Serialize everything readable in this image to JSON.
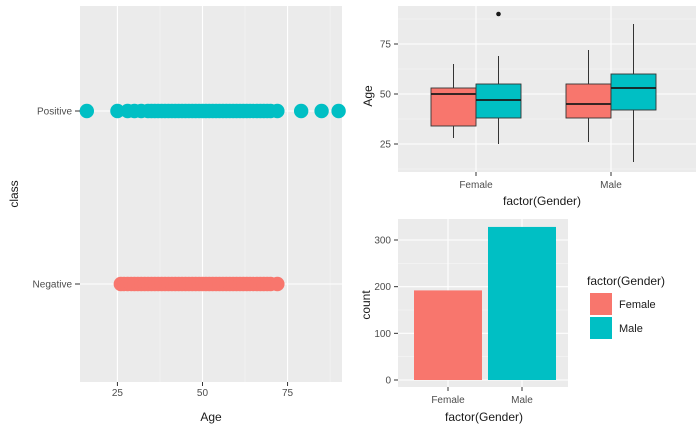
{
  "chart_data": [
    {
      "type": "scatter",
      "xlabel": "Age",
      "ylabel": "class",
      "xlim": [
        14,
        91
      ],
      "xticks": [
        25,
        50,
        75
      ],
      "categories": [
        "Negative",
        "Positive"
      ],
      "series": [
        {
          "category": "Positive",
          "color": "#00BFC4",
          "x": [
            16,
            25,
            28,
            30,
            32,
            34,
            35,
            36,
            37,
            38,
            39,
            40,
            41,
            42,
            43,
            44,
            45,
            46,
            47,
            48,
            49,
            50,
            51,
            52,
            53,
            54,
            55,
            56,
            57,
            58,
            59,
            60,
            61,
            62,
            63,
            64,
            65,
            66,
            67,
            68,
            69,
            70,
            72,
            79,
            85,
            90
          ]
        },
        {
          "category": "Negative",
          "color": "#F8766D",
          "x": [
            26,
            27,
            28,
            29,
            30,
            31,
            32,
            33,
            34,
            35,
            36,
            37,
            38,
            39,
            40,
            41,
            42,
            43,
            44,
            45,
            46,
            47,
            48,
            49,
            50,
            51,
            52,
            53,
            54,
            55,
            56,
            57,
            58,
            59,
            60,
            61,
            62,
            63,
            64,
            65,
            66,
            67,
            68,
            69,
            70,
            72
          ]
        }
      ]
    },
    {
      "type": "box",
      "xlabel": "factor(Gender)",
      "ylabel": "Age",
      "ylim": [
        11,
        94
      ],
      "yticks": [
        25,
        50,
        75
      ],
      "categories": [
        "Female",
        "Male"
      ],
      "series": [
        {
          "name": "Negative",
          "color": "#F8766D",
          "boxes": [
            {
              "category": "Female",
              "min": 28,
              "q1": 34,
              "median": 50,
              "q3": 53,
              "max": 65,
              "outliers": []
            },
            {
              "category": "Male",
              "min": 26,
              "q1": 38,
              "median": 45,
              "q3": 55,
              "max": 72,
              "outliers": []
            }
          ]
        },
        {
          "name": "Positive",
          "color": "#00BFC4",
          "boxes": [
            {
              "category": "Female",
              "min": 25,
              "q1": 38,
              "median": 47,
              "q3": 55,
              "max": 69,
              "outliers": [
                90
              ]
            },
            {
              "category": "Male",
              "min": 16,
              "q1": 42,
              "median": 53,
              "q3": 60,
              "max": 85,
              "outliers": []
            }
          ]
        }
      ]
    },
    {
      "type": "bar",
      "xlabel": "factor(Gender)",
      "ylabel": "count",
      "ylim": [
        -15,
        345
      ],
      "yticks": [
        0,
        100,
        200,
        300
      ],
      "categories": [
        "Female",
        "Male"
      ],
      "values": [
        192,
        328
      ],
      "colors": [
        "#F8766D",
        "#00BFC4"
      ],
      "legend": {
        "title": "factor(Gender)",
        "position": "right",
        "items": [
          {
            "label": "Female",
            "color": "#F8766D"
          },
          {
            "label": "Male",
            "color": "#00BFC4"
          }
        ]
      }
    }
  ]
}
